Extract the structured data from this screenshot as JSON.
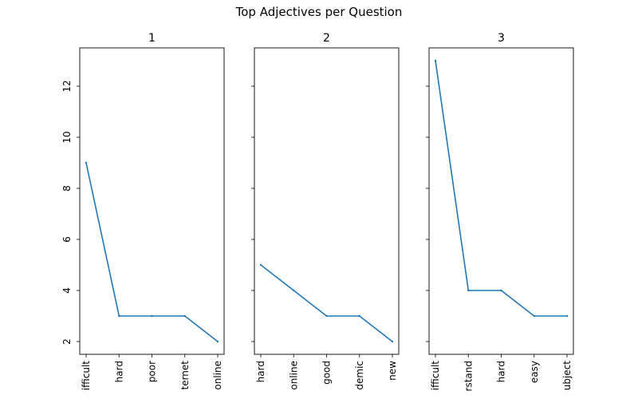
{
  "figure": {
    "suptitle": "Top Adjectives per Question",
    "line_color": "#1f77b4"
  },
  "chart_data": [
    {
      "type": "line",
      "title": "1",
      "categories": [
        "difficult",
        "hard",
        "poor",
        "internet",
        "online"
      ],
      "tick_labels_visible": [
        "ifficult",
        "hard",
        "poor",
        "ternet",
        "online"
      ],
      "values": [
        9,
        3,
        3,
        3,
        2
      ],
      "ylim": [
        1.5,
        13.5
      ],
      "yticks": [
        2,
        4,
        6,
        8,
        10,
        12
      ],
      "grid": false
    },
    {
      "type": "line",
      "title": "2",
      "categories": [
        "hard",
        "online",
        "good",
        "academic",
        "new"
      ],
      "tick_labels_visible": [
        "hard",
        "online",
        "good",
        "demic",
        "new"
      ],
      "values": [
        5,
        4,
        3,
        3,
        2
      ],
      "ylim": [
        1.5,
        13.5
      ],
      "yticks": [
        2,
        4,
        6,
        8,
        10,
        12
      ],
      "grid": false
    },
    {
      "type": "line",
      "title": "3",
      "categories": [
        "difficult",
        "understand",
        "hard",
        "easy",
        "subject"
      ],
      "tick_labels_visible": [
        "ifficult",
        "rstand",
        "hard",
        "easy",
        "ubject"
      ],
      "values": [
        13,
        4,
        4,
        3,
        3
      ],
      "ylim": [
        1.5,
        13.5
      ],
      "yticks": [
        2,
        4,
        6,
        8,
        10,
        12
      ],
      "grid": false
    }
  ]
}
